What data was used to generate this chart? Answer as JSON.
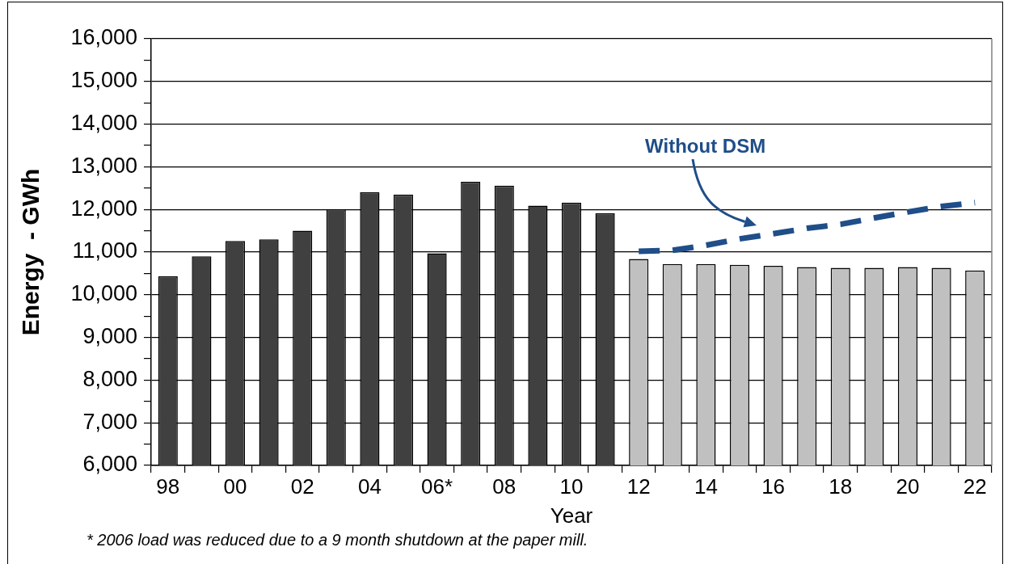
{
  "chart_data": {
    "type": "bar",
    "xlabel": "Year",
    "ylabel": "Energy  - GWh",
    "categories": [
      "98",
      null,
      "00",
      null,
      "02",
      null,
      "04",
      null,
      "06*",
      null,
      "08",
      null,
      "10",
      null,
      "12",
      null,
      "14",
      null,
      "16",
      null,
      "18",
      null,
      "20",
      null,
      "22"
    ],
    "series": [
      {
        "colors": [
          "#404040",
          "#404040",
          "#404040",
          "#404040",
          "#404040",
          "#404040",
          "#404040",
          "#404040",
          "#404040",
          "#404040",
          "#404040",
          "#404040",
          "#404040",
          "#404040",
          "#c0c0c0",
          "#c0c0c0",
          "#c0c0c0",
          "#c0c0c0",
          "#c0c0c0",
          "#c0c0c0",
          "#c0c0c0",
          "#c0c0c0",
          "#c0c0c0",
          "#c0c0c0",
          "#c0c0c0"
        ],
        "values": [
          10430,
          10900,
          11260,
          11300,
          11500,
          12010,
          12400,
          12350,
          10970,
          12650,
          12560,
          12090,
          12160,
          11910,
          10840,
          10720,
          10720,
          10700,
          10680,
          10650,
          10630,
          10630,
          10650,
          10630,
          10570
        ]
      },
      {
        "type": "line",
        "name": "Without DSM",
        "color": "#1f4e89",
        "values": [
          null,
          null,
          null,
          null,
          null,
          null,
          null,
          null,
          null,
          null,
          null,
          null,
          null,
          null,
          11020,
          11040,
          11160,
          11310,
          11430,
          11560,
          11650,
          11800,
          11940,
          12070,
          12160
        ]
      }
    ],
    "ylim": [
      6000,
      16000
    ],
    "yticks": [
      {
        "value": 6000,
        "label": "6,000"
      },
      {
        "value": 6500,
        "label": null
      },
      {
        "value": 7000,
        "label": "7,000"
      },
      {
        "value": 7500,
        "label": null
      },
      {
        "value": 8000,
        "label": "8,000"
      },
      {
        "value": 8500,
        "label": null
      },
      {
        "value": 9000,
        "label": "9,000"
      },
      {
        "value": 9500,
        "label": null
      },
      {
        "value": 10000,
        "label": "10,000"
      },
      {
        "value": 10500,
        "label": null
      },
      {
        "value": 11000,
        "label": "11,000"
      },
      {
        "value": 11500,
        "label": null
      },
      {
        "value": 12000,
        "label": "12,000"
      },
      {
        "value": 12500,
        "label": null
      },
      {
        "value": 13000,
        "label": "13,000"
      },
      {
        "value": 13500,
        "label": null
      },
      {
        "value": 14000,
        "label": "14,000"
      },
      {
        "value": 14500,
        "label": null
      },
      {
        "value": 15000,
        "label": "15,000"
      },
      {
        "value": 15500,
        "label": null
      },
      {
        "value": 16000,
        "label": "16,000"
      }
    ],
    "grid": "y",
    "legend": false,
    "line_style": "dashed",
    "marker": "none",
    "annotations": [
      "* 2006 load was reduced due to a 9 month shutdown at the paper mill."
    ]
  }
}
